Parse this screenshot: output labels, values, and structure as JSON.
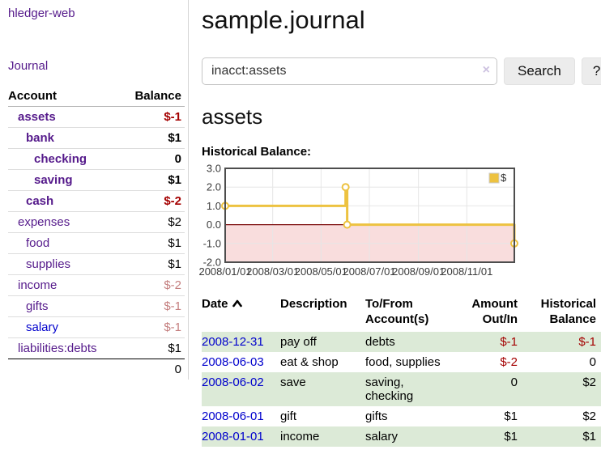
{
  "app": {
    "title": "hledger-web"
  },
  "sidebar": {
    "journal_label": "Journal",
    "accounts": {
      "header_account": "Account",
      "header_balance": "Balance",
      "rows": [
        {
          "name": "assets",
          "balance": "$-1",
          "indent": 1,
          "bold": true,
          "balance_style": "negative-strong",
          "link_style": "visited"
        },
        {
          "name": "bank",
          "balance": "$1",
          "indent": 2,
          "bold": true,
          "balance_style": "normal",
          "link_style": "visited"
        },
        {
          "name": "checking",
          "balance": "0",
          "indent": 3,
          "bold": true,
          "balance_style": "normal",
          "link_style": "visited"
        },
        {
          "name": "saving",
          "balance": "$1",
          "indent": 3,
          "bold": true,
          "balance_style": "normal",
          "link_style": "visited"
        },
        {
          "name": "cash",
          "balance": "$-2",
          "indent": 2,
          "bold": true,
          "balance_style": "negative-strong",
          "link_style": "visited"
        },
        {
          "name": "expenses",
          "balance": "$2",
          "indent": 1,
          "bold": false,
          "balance_style": "normal",
          "link_style": "visited"
        },
        {
          "name": "food",
          "balance": "$1",
          "indent": 2,
          "bold": false,
          "balance_style": "normal",
          "link_style": "visited"
        },
        {
          "name": "supplies",
          "balance": "$1",
          "indent": 2,
          "bold": false,
          "balance_style": "normal",
          "link_style": "visited"
        },
        {
          "name": "income",
          "balance": "$-2",
          "indent": 1,
          "bold": false,
          "balance_style": "negative-muted",
          "link_style": "visited"
        },
        {
          "name": "gifts",
          "balance": "$-1",
          "indent": 2,
          "bold": false,
          "balance_style": "negative-muted",
          "link_style": "visited"
        },
        {
          "name": "salary",
          "balance": "$-1",
          "indent": 2,
          "bold": false,
          "balance_style": "negative-muted",
          "link_style": "unvisited"
        },
        {
          "name": "liabilities:debts",
          "balance": "$1",
          "indent": 1,
          "bold": false,
          "balance_style": "normal",
          "link_style": "visited"
        }
      ],
      "total": "0"
    }
  },
  "main": {
    "title": "sample.journal",
    "search": {
      "value": "inacct:assets",
      "clear_icon": "×",
      "button_label": "Search",
      "help_label": "?"
    },
    "account_heading": "assets"
  },
  "chart_data": {
    "type": "line",
    "step": true,
    "title": "Historical Balance:",
    "series": [
      {
        "name": "$",
        "color": "#edc240",
        "points": [
          [
            "2008-01-01",
            1
          ],
          [
            "2008-06-01",
            2
          ],
          [
            "2008-06-03",
            0
          ],
          [
            "2008-12-31",
            -1
          ]
        ]
      }
    ],
    "xrange": [
      "2008-01-01",
      "2008-12-31"
    ],
    "ylim": [
      -2,
      3
    ],
    "yticks": [
      3,
      2,
      1,
      0,
      -1,
      -2
    ],
    "xticks": [
      "2008/01/01",
      "2008/03/01",
      "2008/05/01",
      "2008/07/01",
      "2008/09/01",
      "2008/11/01"
    ],
    "legend_position": "top-right",
    "colors": {
      "negative_area": "#f9dddd",
      "zero_line": "#7d0e0e",
      "grid": "#e6e6e6",
      "border": "#4d4d4d",
      "tick_text": "#3a3a3a"
    }
  },
  "register": {
    "columns": [
      {
        "label": "Date",
        "align": "left",
        "sorted": "ascending"
      },
      {
        "label": "Description",
        "align": "left"
      },
      {
        "label": "To/From Account(s)",
        "align": "left"
      },
      {
        "label": "Amount Out/In",
        "align": "right"
      },
      {
        "label": "Historical Balance",
        "align": "right"
      }
    ],
    "rows": [
      {
        "date": "2008-12-31",
        "description": "pay off",
        "accounts": "debts",
        "amount": "$-1",
        "balance": "$-1",
        "amount_negative": true,
        "balance_negative": true
      },
      {
        "date": "2008-06-03",
        "description": "eat & shop",
        "accounts": "food, supplies",
        "amount": "$-2",
        "balance": "0",
        "amount_negative": true,
        "balance_negative": false
      },
      {
        "date": "2008-06-02",
        "description": "save",
        "accounts": "saving, checking",
        "amount": "0",
        "balance": "$2",
        "amount_negative": false,
        "balance_negative": false
      },
      {
        "date": "2008-06-01",
        "description": "gift",
        "accounts": "gifts",
        "amount": "$1",
        "balance": "$2",
        "amount_negative": false,
        "balance_negative": false
      },
      {
        "date": "2008-01-01",
        "description": "income",
        "accounts": "salary",
        "amount": "$1",
        "balance": "$1",
        "amount_negative": false,
        "balance_negative": false
      }
    ]
  }
}
